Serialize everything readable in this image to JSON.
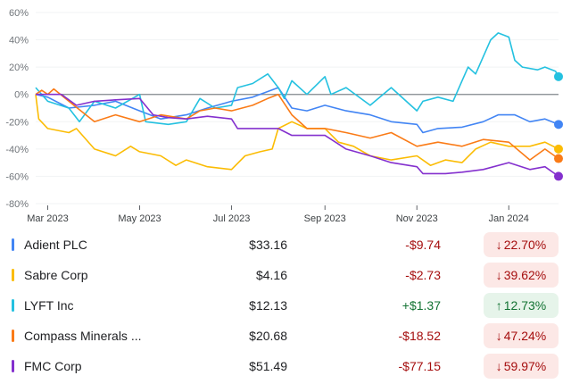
{
  "chart_data": {
    "type": "line",
    "ylim": [
      -80,
      60
    ],
    "yticks": [
      "60%",
      "40%",
      "20%",
      "0%",
      "-20%",
      "-40%",
      "-60%",
      "-80%"
    ],
    "ytick_values": [
      60,
      40,
      20,
      0,
      -20,
      -40,
      -60,
      -80
    ],
    "xticks": [
      {
        "label": "Mar 2023",
        "date": "2023-03-01"
      },
      {
        "label": "May 2023",
        "date": "2023-05-01"
      },
      {
        "label": "Jul 2023",
        "date": "2023-07-01"
      },
      {
        "label": "Sep 2023",
        "date": "2023-09-01"
      },
      {
        "label": "Nov 2023",
        "date": "2023-11-01"
      },
      {
        "label": "Jan 2024",
        "date": "2024-01-01"
      }
    ],
    "xrange": [
      "2023-02-21",
      "2024-02-03"
    ],
    "grid": true,
    "series": [
      {
        "name": "Adient PLC",
        "color": "#4285f4",
        "points": [
          [
            "2023-02-21",
            0
          ],
          [
            "2023-03-01",
            -2
          ],
          [
            "2023-03-15",
            -10
          ],
          [
            "2023-04-01",
            -8
          ],
          [
            "2023-04-15",
            -5
          ],
          [
            "2023-05-01",
            -12
          ],
          [
            "2023-05-15",
            -18
          ],
          [
            "2023-06-01",
            -15
          ],
          [
            "2023-06-15",
            -10
          ],
          [
            "2023-07-01",
            -5
          ],
          [
            "2023-07-15",
            -2
          ],
          [
            "2023-08-01",
            5
          ],
          [
            "2023-08-10",
            -10
          ],
          [
            "2023-08-20",
            -12
          ],
          [
            "2023-09-01",
            -8
          ],
          [
            "2023-09-15",
            -12
          ],
          [
            "2023-10-01",
            -15
          ],
          [
            "2023-10-15",
            -20
          ],
          [
            "2023-11-01",
            -22
          ],
          [
            "2023-11-05",
            -28
          ],
          [
            "2023-11-15",
            -25
          ],
          [
            "2023-12-01",
            -24
          ],
          [
            "2023-12-15",
            -20
          ],
          [
            "2023-12-25",
            -15
          ],
          [
            "2024-01-05",
            -15
          ],
          [
            "2024-01-15",
            -20
          ],
          [
            "2024-01-25",
            -18
          ],
          [
            "2024-02-03",
            -22
          ]
        ]
      },
      {
        "name": "Sabre Corp",
        "color": "#fbbc04",
        "points": [
          [
            "2023-02-21",
            0
          ],
          [
            "2023-02-23",
            -18
          ],
          [
            "2023-03-01",
            -25
          ],
          [
            "2023-03-15",
            -28
          ],
          [
            "2023-03-20",
            -25
          ],
          [
            "2023-04-01",
            -40
          ],
          [
            "2023-04-15",
            -45
          ],
          [
            "2023-04-25",
            -38
          ],
          [
            "2023-05-01",
            -42
          ],
          [
            "2023-05-15",
            -45
          ],
          [
            "2023-05-25",
            -52
          ],
          [
            "2023-06-01",
            -48
          ],
          [
            "2023-06-15",
            -53
          ],
          [
            "2023-07-01",
            -55
          ],
          [
            "2023-07-10",
            -45
          ],
          [
            "2023-07-20",
            -42
          ],
          [
            "2023-07-28",
            -40
          ],
          [
            "2023-08-01",
            -25
          ],
          [
            "2023-08-10",
            -20
          ],
          [
            "2023-08-20",
            -25
          ],
          [
            "2023-09-01",
            -25
          ],
          [
            "2023-09-10",
            -35
          ],
          [
            "2023-09-20",
            -38
          ],
          [
            "2023-10-01",
            -45
          ],
          [
            "2023-10-15",
            -48
          ],
          [
            "2023-11-01",
            -45
          ],
          [
            "2023-11-10",
            -52
          ],
          [
            "2023-11-20",
            -48
          ],
          [
            "2023-12-01",
            -50
          ],
          [
            "2023-12-10",
            -40
          ],
          [
            "2023-12-20",
            -35
          ],
          [
            "2024-01-01",
            -38
          ],
          [
            "2024-01-15",
            -38
          ],
          [
            "2024-01-25",
            -35
          ],
          [
            "2024-02-03",
            -40
          ]
        ]
      },
      {
        "name": "LYFT Inc",
        "color": "#24c1e0",
        "points": [
          [
            "2023-02-21",
            5
          ],
          [
            "2023-03-01",
            -5
          ],
          [
            "2023-03-15",
            -10
          ],
          [
            "2023-03-22",
            -20
          ],
          [
            "2023-04-01",
            -5
          ],
          [
            "2023-04-15",
            -10
          ],
          [
            "2023-05-01",
            0
          ],
          [
            "2023-05-05",
            -20
          ],
          [
            "2023-05-20",
            -22
          ],
          [
            "2023-06-01",
            -20
          ],
          [
            "2023-06-10",
            -3
          ],
          [
            "2023-06-20",
            -10
          ],
          [
            "2023-07-01",
            -8
          ],
          [
            "2023-07-05",
            5
          ],
          [
            "2023-07-15",
            8
          ],
          [
            "2023-07-25",
            15
          ],
          [
            "2023-08-01",
            5
          ],
          [
            "2023-08-05",
            -3
          ],
          [
            "2023-08-10",
            10
          ],
          [
            "2023-08-20",
            0
          ],
          [
            "2023-09-01",
            13
          ],
          [
            "2023-09-05",
            0
          ],
          [
            "2023-09-15",
            5
          ],
          [
            "2023-10-01",
            -8
          ],
          [
            "2023-10-15",
            5
          ],
          [
            "2023-10-25",
            -5
          ],
          [
            "2023-11-01",
            -12
          ],
          [
            "2023-11-05",
            -5
          ],
          [
            "2023-11-15",
            -2
          ],
          [
            "2023-11-25",
            -5
          ],
          [
            "2023-12-01",
            10
          ],
          [
            "2023-12-05",
            20
          ],
          [
            "2023-12-10",
            15
          ],
          [
            "2023-12-20",
            40
          ],
          [
            "2023-12-25",
            45
          ],
          [
            "2024-01-01",
            42
          ],
          [
            "2024-01-05",
            25
          ],
          [
            "2024-01-10",
            20
          ],
          [
            "2024-01-20",
            18
          ],
          [
            "2024-01-25",
            20
          ],
          [
            "2024-02-01",
            17
          ],
          [
            "2024-02-03",
            13
          ]
        ]
      },
      {
        "name": "Compass Minerals ...",
        "color": "#fa7b17",
        "points": [
          [
            "2023-02-21",
            0
          ],
          [
            "2023-02-25",
            3
          ],
          [
            "2023-03-01",
            0
          ],
          [
            "2023-03-05",
            4
          ],
          [
            "2023-03-15",
            -5
          ],
          [
            "2023-04-01",
            -20
          ],
          [
            "2023-04-15",
            -15
          ],
          [
            "2023-05-01",
            -20
          ],
          [
            "2023-05-15",
            -15
          ],
          [
            "2023-06-01",
            -18
          ],
          [
            "2023-06-10",
            -12
          ],
          [
            "2023-06-20",
            -10
          ],
          [
            "2023-07-01",
            -12
          ],
          [
            "2023-07-15",
            -8
          ],
          [
            "2023-07-25",
            -3
          ],
          [
            "2023-08-01",
            0
          ],
          [
            "2023-08-10",
            -15
          ],
          [
            "2023-08-20",
            -25
          ],
          [
            "2023-09-01",
            -25
          ],
          [
            "2023-09-15",
            -28
          ],
          [
            "2023-10-01",
            -32
          ],
          [
            "2023-10-15",
            -28
          ],
          [
            "2023-11-01",
            -38
          ],
          [
            "2023-11-15",
            -35
          ],
          [
            "2023-12-01",
            -38
          ],
          [
            "2023-12-15",
            -33
          ],
          [
            "2024-01-01",
            -35
          ],
          [
            "2024-01-15",
            -48
          ],
          [
            "2024-01-25",
            -40
          ],
          [
            "2024-02-03",
            -47
          ]
        ]
      },
      {
        "name": "FMC Corp",
        "color": "#8430ce",
        "points": [
          [
            "2023-02-21",
            0
          ],
          [
            "2023-03-01",
            0
          ],
          [
            "2023-03-10",
            0
          ],
          [
            "2023-03-20",
            -8
          ],
          [
            "2023-04-01",
            -5
          ],
          [
            "2023-04-15",
            -4
          ],
          [
            "2023-05-01",
            -3
          ],
          [
            "2023-05-10",
            -15
          ],
          [
            "2023-05-20",
            -17
          ],
          [
            "2023-06-01",
            -18
          ],
          [
            "2023-06-15",
            -16
          ],
          [
            "2023-07-01",
            -18
          ],
          [
            "2023-07-05",
            -25
          ],
          [
            "2023-07-20",
            -25
          ],
          [
            "2023-08-01",
            -25
          ],
          [
            "2023-08-10",
            -30
          ],
          [
            "2023-09-01",
            -30
          ],
          [
            "2023-09-15",
            -40
          ],
          [
            "2023-10-01",
            -45
          ],
          [
            "2023-10-15",
            -50
          ],
          [
            "2023-11-01",
            -53
          ],
          [
            "2023-11-05",
            -58
          ],
          [
            "2023-11-20",
            -58
          ],
          [
            "2023-12-01",
            -57
          ],
          [
            "2023-12-15",
            -55
          ],
          [
            "2024-01-01",
            -50
          ],
          [
            "2024-01-15",
            -55
          ],
          [
            "2024-01-25",
            -53
          ],
          [
            "2024-02-03",
            -60
          ]
        ]
      }
    ]
  },
  "table": [
    {
      "name": "Adient PLC",
      "color": "#4285f4",
      "price": "$33.16",
      "change": "-$9.74",
      "percent": "22.70%",
      "direction": "down",
      "arrow": "↓"
    },
    {
      "name": "Sabre Corp",
      "color": "#fbbc04",
      "price": "$4.16",
      "change": "-$2.73",
      "percent": "39.62%",
      "direction": "down",
      "arrow": "↓"
    },
    {
      "name": "LYFT Inc",
      "color": "#24c1e0",
      "price": "$12.13",
      "change": "+$1.37",
      "percent": "12.73%",
      "direction": "up",
      "arrow": "↑"
    },
    {
      "name": "Compass Minerals ...",
      "color": "#fa7b17",
      "price": "$20.68",
      "change": "-$18.52",
      "percent": "47.24%",
      "direction": "down",
      "arrow": "↓"
    },
    {
      "name": "FMC Corp",
      "color": "#8430ce",
      "price": "$51.49",
      "change": "-$77.15",
      "percent": "59.97%",
      "direction": "down",
      "arrow": "↓"
    }
  ]
}
